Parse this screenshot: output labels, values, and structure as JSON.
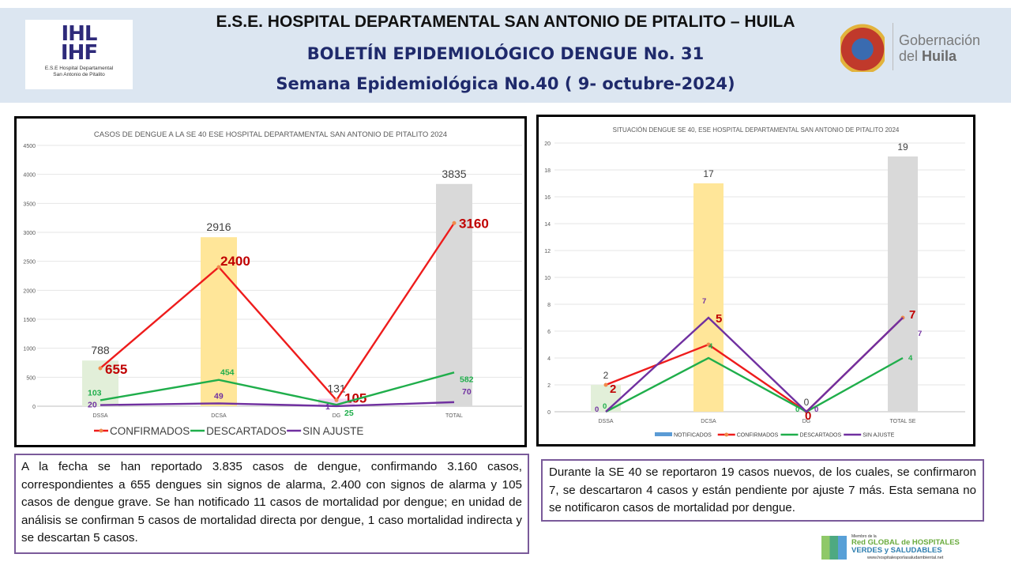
{
  "header": {
    "title": "E.S.E. HOSPITAL DEPARTAMENTAL SAN ANTONIO DE PITALITO  –  HUILA",
    "subtitle": "BOLETÍN EPIDEMIOLÓGICO DENGUE No. 31",
    "week": "Semana Epidemiológica No.40 ( 9- octubre-2024)",
    "logo_left_caption_1": "E.S.E Hospital Departamental",
    "logo_left_caption_2": "San Antonio de Pitalito",
    "gob_line1": "Gobernación",
    "gob_line2a": "del ",
    "gob_line2b": "Huila"
  },
  "chart_data": [
    {
      "type": "bar+line",
      "title": "CASOS DE DENGUE A LA SE 40 ESE HOSPITAL DEPARTAMENTAL SAN ANTONIO DE PITALITO 2024",
      "categories": [
        "DSSA",
        "DCSA",
        "DG",
        "TOTAL"
      ],
      "ylim": [
        0,
        4500
      ],
      "yticks": [
        0,
        500,
        1000,
        1500,
        2000,
        2500,
        3000,
        3500,
        4000,
        4500
      ],
      "grid": true,
      "legend_position": "bottom",
      "bars": {
        "values": [
          788,
          2916,
          131,
          3835
        ],
        "colors": [
          "#e2efd9",
          "#ffe699",
          "#f2d4f2",
          "#d9d9d9"
        ]
      },
      "series": [
        {
          "name": "CONFIRMADOS",
          "values": [
            655,
            2400,
            105,
            3160
          ],
          "color": "#ee1c1c",
          "label_color": "#c00000"
        },
        {
          "name": "DESCARTADOS",
          "values": [
            103,
            454,
            25,
            582
          ],
          "color": "#1fae4b",
          "label_color": "#1fae4b"
        },
        {
          "name": "SIN AJUSTE",
          "values": [
            20,
            49,
            1,
            70
          ],
          "color": "#7030a0",
          "label_color": "#7030a0"
        }
      ]
    },
    {
      "type": "bar+line",
      "title": "SITUACIÓN DENGUE SE 40, ESE HOSPITAL DEPARTAMENTAL SAN ANTONIO DE PITALITO 2024",
      "categories": [
        "DSSA",
        "DCSA",
        "DG",
        "TOTAL SE"
      ],
      "ylim": [
        0,
        20
      ],
      "yticks": [
        0,
        2,
        4,
        6,
        8,
        10,
        12,
        14,
        16,
        18,
        20
      ],
      "grid": true,
      "legend_position": "bottom",
      "bars": {
        "name": "NOTIFICADOS",
        "values": [
          2,
          17,
          0,
          19
        ],
        "colors": [
          "#e2efd9",
          "#ffe699",
          "#f2d4f2",
          "#d9d9d9"
        ],
        "legend_color": "#5b9bd5"
      },
      "series": [
        {
          "name": "CONFIRMADOS",
          "values": [
            2,
            5,
            0,
            7
          ],
          "color": "#ee1c1c",
          "label_color": "#c00000"
        },
        {
          "name": "DESCARTADOS",
          "values": [
            0,
            4,
            0,
            4
          ],
          "color": "#1fae4b",
          "label_color": "#1fae4b"
        },
        {
          "name": "SIN AJUSTE",
          "values": [
            0,
            7,
            0,
            7
          ],
          "color": "#7030a0",
          "label_color": "#7030a0"
        }
      ]
    }
  ],
  "summary_left": "A la fecha se han reportado 3.835 casos de dengue, confirmando 3.160 casos, correspondientes a 655 dengues sin signos de alarma, 2.400 con signos de alarma y 105 casos de dengue grave. Se han notificado 11 casos de mortalidad  por dengue; en unidad de análisis se confirman 5 casos de mortalidad directa por dengue, 1 caso mortalidad indirecta y se descartan 5 casos.",
  "summary_right": "Durante la  SE 40 se reportaron 19 casos nuevos, de los cuales, se confirmaron 7, se descartaron 4 casos y están pendiente por ajuste 7 más. Esta semana no se notificaron casos de mortalidad por dengue.",
  "footer": {
    "member": "Miembro de la",
    "network_1": "Red GLOBAL de HOSPITALES",
    "network_2": "VERDES y SALUDABLES",
    "url": "www.hospitalesporlasaludambiental.net"
  }
}
